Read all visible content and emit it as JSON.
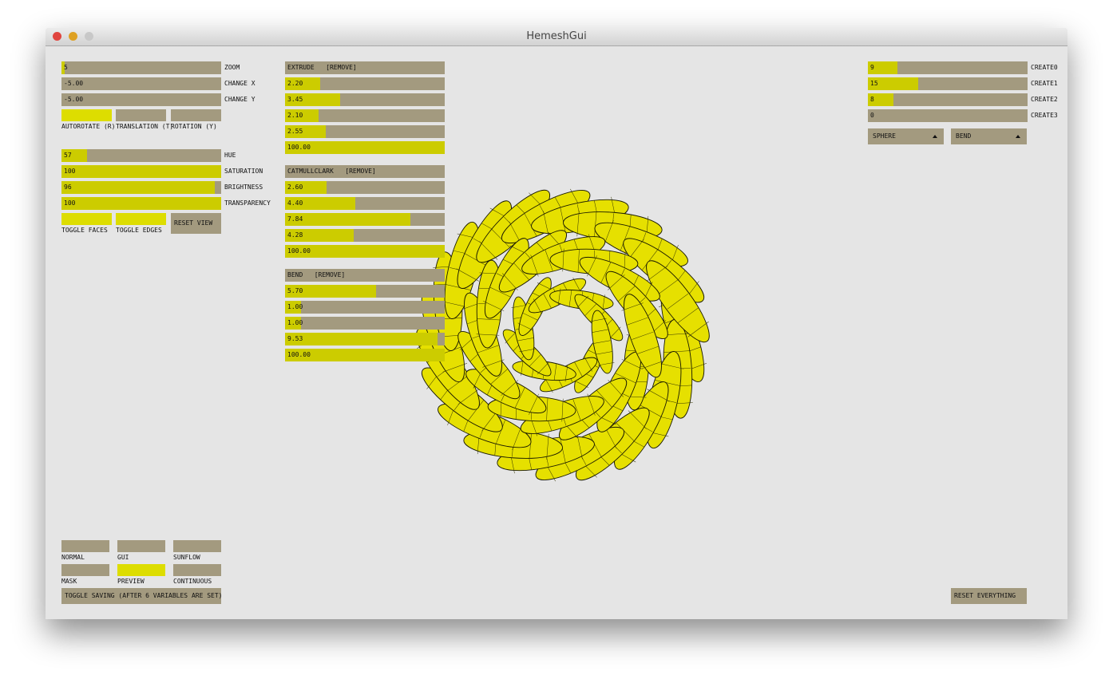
{
  "window": {
    "title": "HemeshGui"
  },
  "left_sliders": [
    {
      "value": "5",
      "label": "ZOOM"
    },
    {
      "value": "-5.00",
      "label": "CHANGE X"
    },
    {
      "value": "-5.00",
      "label": "CHANGE Y"
    }
  ],
  "view_toggles": [
    {
      "label": "AUTOROTATE (R)",
      "on": true
    },
    {
      "label": "TRANSLATION (T)",
      "on": false
    },
    {
      "label": "ROTATION (Y)",
      "on": false
    }
  ],
  "color_sliders": [
    {
      "value": "57",
      "label": "HUE"
    },
    {
      "value": "100",
      "label": "SATURATION"
    },
    {
      "value": "96",
      "label": "BRIGHTNESS"
    },
    {
      "value": "100",
      "label": "TRANSPARENCY"
    }
  ],
  "display_toggles": [
    {
      "label": "TOGGLE FACES",
      "on": true
    },
    {
      "label": "TOGGLE EDGES",
      "on": true
    }
  ],
  "reset_view": "RESET VIEW",
  "modifiers": [
    {
      "header": "EXTRUDE   [REMOVE]",
      "values": [
        "2.20",
        "3.45",
        "2.10",
        "2.55",
        "100.00"
      ]
    },
    {
      "header": "CATMULLCLARK   [REMOVE]",
      "values": [
        "2.60",
        "4.40",
        "7.84",
        "4.28",
        "100.00"
      ]
    },
    {
      "header": "BEND   [REMOVE]",
      "values": [
        "5.70",
        "1.00",
        "1.00",
        "9.53",
        "100.00"
      ]
    }
  ],
  "create_sliders": [
    {
      "value": "9",
      "label": "CREATE0"
    },
    {
      "value": "15",
      "label": "CREATE1"
    },
    {
      "value": "8",
      "label": "CREATE2"
    },
    {
      "value": "0",
      "label": "CREATE3"
    }
  ],
  "dropdowns": [
    "SPHERE",
    "BEND"
  ],
  "render_toggles": [
    {
      "label": "NORMAL",
      "on": false
    },
    {
      "label": "GUI",
      "on": false
    },
    {
      "label": "SUNFLOW",
      "on": false
    },
    {
      "label": "MASK",
      "on": false
    },
    {
      "label": "PREVIEW",
      "on": true
    },
    {
      "label": "CONTINUOUS",
      "on": false
    }
  ],
  "save_button": "TOGGLE SAVING (AFTER 6 VARIABLES ARE SET)",
  "reset_everything": "RESET EVERYTHING"
}
